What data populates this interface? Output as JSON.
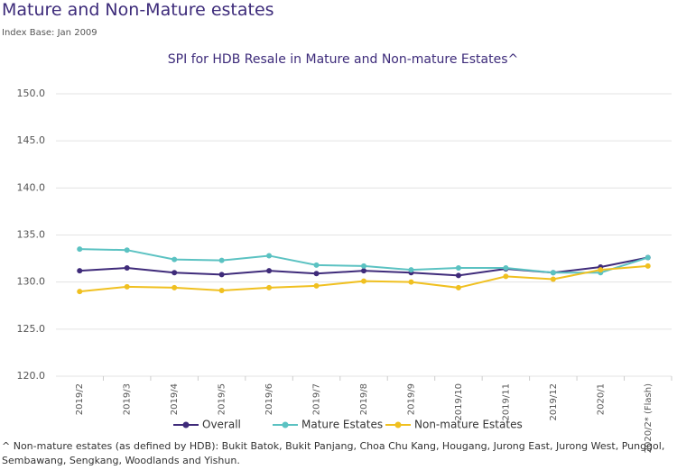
{
  "header": {
    "title": "Mature and Non-Mature estates",
    "subtitle": "Index Base: Jan 2009"
  },
  "chart_data": {
    "type": "line",
    "title": "SPI for HDB Resale in Mature and Non-mature Estates^",
    "categories": [
      "2019/2",
      "2019/3",
      "2019/4",
      "2019/5",
      "2019/6",
      "2019/7",
      "2019/8",
      "2019/9",
      "2019/10",
      "2019/11",
      "2019/12",
      "2020/1",
      "2020/2* (Flash)"
    ],
    "series": [
      {
        "name": "Overall",
        "color": "#3f2b7a",
        "values": [
          131.2,
          131.5,
          131.0,
          130.8,
          131.2,
          130.9,
          131.2,
          131.0,
          130.7,
          131.4,
          131.0,
          131.6,
          132.6
        ]
      },
      {
        "name": "Mature Estates",
        "color": "#5bc2c2",
        "values": [
          133.5,
          133.4,
          132.4,
          132.3,
          132.8,
          131.8,
          131.7,
          131.3,
          131.5,
          131.5,
          131.0,
          131.0,
          132.6
        ]
      },
      {
        "name": "Non-mature Estates",
        "color": "#f0c020",
        "values": [
          129.0,
          129.5,
          129.4,
          129.1,
          129.4,
          129.6,
          130.1,
          130.0,
          129.4,
          130.6,
          130.3,
          131.3,
          131.7
        ]
      }
    ],
    "ylim": [
      120,
      150
    ],
    "yticks": [
      {
        "value": 120,
        "label": "120.0"
      },
      {
        "value": 125,
        "label": "125.0"
      },
      {
        "value": 130,
        "label": "130.0"
      },
      {
        "value": 135,
        "label": "135.0"
      },
      {
        "value": 140,
        "label": "140.0"
      },
      {
        "value": 145,
        "label": "145.0"
      },
      {
        "value": 150,
        "label": "150.0"
      }
    ],
    "grid": true,
    "legend": "bottom"
  },
  "footnote": "^ Non-mature estates (as defined by HDB): Bukit Batok, Bukit Panjang, Choa Chu Kang, Hougang, Jurong East, Jurong West, Punggol, Sembawang, Sengkang, Woodlands and Yishun."
}
